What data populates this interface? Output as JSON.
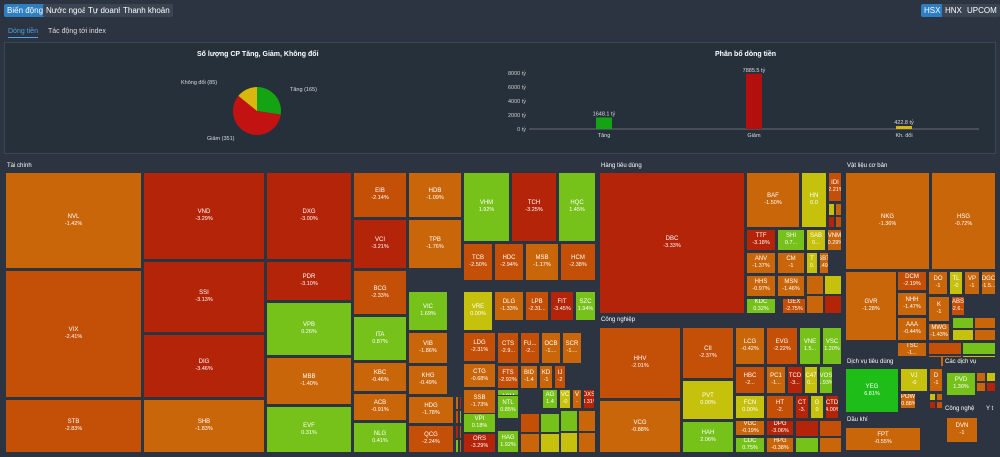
{
  "topbar": {
    "tabs": [
      {
        "label": "Biến động",
        "active": true
      },
      {
        "label": "Nước ngoài"
      },
      {
        "label": "Tự doanh"
      },
      {
        "label": "Thanh khoản"
      }
    ],
    "exchanges": [
      {
        "label": "HSX",
        "active": true
      },
      {
        "label": "HNX"
      },
      {
        "label": "UPCOM"
      }
    ]
  },
  "subtabs": [
    {
      "label": "Dòng tiền",
      "active": true
    },
    {
      "label": "Tác động tới index"
    }
  ],
  "pie": {
    "title": "Số lượng CP Tăng, Giảm, Không đổi",
    "labels": {
      "up": "Tăng (165)",
      "down": "Giảm (351)",
      "flat": "Không đổi (85)"
    },
    "chart_data": {
      "type": "pie",
      "slices": [
        {
          "name": "Tăng",
          "value": 165,
          "color": "#13a313"
        },
        {
          "name": "Giảm",
          "value": 351,
          "color": "#c21212"
        },
        {
          "name": "Không đổi",
          "value": 85,
          "color": "#d9b70f"
        }
      ]
    }
  },
  "bar": {
    "title": "Phân bổ dòng tiền",
    "yticks": [
      "8000 tỷ",
      "6000 tỷ",
      "4000 tỷ",
      "2000 tỷ",
      "0 tỷ"
    ],
    "chart_data": {
      "type": "bar",
      "categories": [
        "Tăng",
        "Giảm",
        "Kh. đổi"
      ],
      "values": [
        1648.1,
        7885.5,
        422.8
      ],
      "value_labels": [
        "1648.1 tỷ",
        "7885.5 tỷ",
        "422.8 tỷ"
      ],
      "colors": [
        "#13a313",
        "#b30f0f",
        "#d9b70f"
      ],
      "ylim": [
        0,
        8000
      ]
    }
  },
  "sectors": {
    "taichinh": "Tài chính",
    "hangtieudung": "Hàng tiêu dùng",
    "vatlieu": "Vật liệu cơ bản",
    "congnghiep": "Công nghiệp",
    "dichvutieudung": "Dịch vụ tiêu dùng",
    "cacdichvu": "Các dịch vụ",
    "dauthi": "Dầu khí",
    "congnghe": "Công nghệ",
    "y": "Y t"
  },
  "tiles": [
    {
      "t": "NVL",
      "p": "-1.42%"
    },
    {
      "t": "VIX",
      "p": "-2.41%"
    },
    {
      "t": "STB",
      "p": "-2.83%"
    },
    {
      "t": "VND",
      "p": "-3.29%"
    },
    {
      "t": "SSI",
      "p": "-3.13%"
    },
    {
      "t": "DIG",
      "p": "-3.46%"
    },
    {
      "t": "SHB",
      "p": "-1.83%"
    },
    {
      "t": "DXG",
      "p": "-3.00%"
    },
    {
      "t": "PDR",
      "p": "-3.10%"
    },
    {
      "t": "VPB",
      "p": "0.26%"
    },
    {
      "t": "MBB",
      "p": "-1.40%"
    },
    {
      "t": "EVF",
      "p": "0.31%"
    },
    {
      "t": "EIB",
      "p": "-2.14%"
    },
    {
      "t": "HDB",
      "p": "-1.09%"
    },
    {
      "t": "VHM",
      "p": "1.92%"
    },
    {
      "t": "TCH",
      "p": "-3.25%"
    },
    {
      "t": "HQC",
      "p": "1.45%"
    },
    {
      "t": "VCI",
      "p": "-3.21%"
    },
    {
      "t": "TPB",
      "p": "-1.76%"
    },
    {
      "t": "TCB",
      "p": "-2.50%"
    },
    {
      "t": "HDC",
      "p": "-2.94%"
    },
    {
      "t": "MSB",
      "p": "-1.17%"
    },
    {
      "t": "HCM",
      "p": "-2.38%"
    },
    {
      "t": "BCG",
      "p": "-2.33%"
    },
    {
      "t": "VIC",
      "p": "1.69%"
    },
    {
      "t": "VRE",
      "p": "0.00%"
    },
    {
      "t": "DLG",
      "p": "-1.33%"
    },
    {
      "t": "LPB",
      "p": "-2.31..."
    },
    {
      "t": "FIT",
      "p": "-3.45%"
    },
    {
      "t": "SZC",
      "p": "1.94%"
    },
    {
      "t": "ITA",
      "p": "0.87%"
    },
    {
      "t": "VIB",
      "p": "-1.86%"
    },
    {
      "t": "LDG",
      "p": "-2.31%"
    },
    {
      "t": "CTS",
      "p": "-2.9..."
    },
    {
      "t": "FU...",
      "p": "-2..."
    },
    {
      "t": "OCB",
      "p": "-1...."
    },
    {
      "t": "SCR",
      "p": "-1...."
    },
    {
      "t": "KBC",
      "p": "-0.46%"
    },
    {
      "t": "KHG",
      "p": "-0.49%"
    },
    {
      "t": "CTG",
      "p": "-0.68%"
    },
    {
      "t": "FTS",
      "p": "-2.92%"
    },
    {
      "t": "BID",
      "p": "-1.4"
    },
    {
      "t": "KD",
      "p": "-1"
    },
    {
      "t": "IJ",
      "p": "-2"
    },
    {
      "t": "ACB",
      "p": "-0.91%"
    },
    {
      "t": "SSB",
      "p": "-1.73%"
    },
    {
      "t": "ASM",
      "p": "1.31%"
    },
    {
      "t": "AG",
      "p": "1.4"
    },
    {
      "t": "VC",
      "p": "-0"
    },
    {
      "t": "V",
      "p": "-"
    },
    {
      "t": "DXS",
      "p": "-3.31%"
    },
    {
      "t": "HDG",
      "p": "-1.78%"
    },
    {
      "t": "VPI",
      "p": "0.18%"
    },
    {
      "t": "NTL",
      "p": "0.85%"
    },
    {
      "t": "NLG",
      "p": "0.41%"
    },
    {
      "t": "QCG",
      "p": "-2.24%"
    },
    {
      "t": "ORS",
      "p": "-3.29%"
    },
    {
      "t": "HAG",
      "p": "1.92%"
    },
    {
      "t": "DBC",
      "p": "-3.33%"
    },
    {
      "t": "BAF",
      "p": "-1.50%"
    },
    {
      "t": "HN",
      "p": "0.0"
    },
    {
      "t": "IDI",
      "p": "-2.21%"
    },
    {
      "t": "TTF",
      "p": "-3.18%"
    },
    {
      "t": "SHI",
      "p": "0.7..."
    },
    {
      "t": "SAB",
      "p": "0..."
    },
    {
      "t": "VNM",
      "p": "-0.29%"
    },
    {
      "t": "ANV",
      "p": "-1.37%"
    },
    {
      "t": "CM",
      "p": "-1"
    },
    {
      "t": "T",
      "p": "0."
    },
    {
      "t": "SBT",
      "p": "-1.49%"
    },
    {
      "t": "HHS",
      "p": "-0.97%"
    },
    {
      "t": "MSN",
      "p": "-1.46%"
    },
    {
      "t": "KDC",
      "p": "0.32%"
    },
    {
      "t": "GEX",
      "p": "-2.75%"
    },
    {
      "t": "HHV",
      "p": "-2.01%"
    },
    {
      "t": "VCG",
      "p": "-0.88%"
    },
    {
      "t": "CII",
      "p": "-2.37%"
    },
    {
      "t": "PVT",
      "p": "0.00%"
    },
    {
      "t": "HAH",
      "p": "2.06%"
    },
    {
      "t": "LCG",
      "p": "-0.42%"
    },
    {
      "t": "EVG",
      "p": "-2.22%"
    },
    {
      "t": "VNE",
      "p": "1.5..."
    },
    {
      "t": "VSC",
      "p": "1.20%"
    },
    {
      "t": "HBC",
      "p": "-2..."
    },
    {
      "t": "PC1",
      "p": "-1..."
    },
    {
      "t": "TCD",
      "p": "-3..."
    },
    {
      "t": "C47",
      "p": "0..."
    },
    {
      "t": "VOS",
      "p": "1.93%"
    },
    {
      "t": "FCN",
      "p": "0.00%"
    },
    {
      "t": "HT",
      "p": "-2."
    },
    {
      "t": "CT",
      "p": "-3."
    },
    {
      "t": "G",
      "p": "0"
    },
    {
      "t": "CTD",
      "p": "-4.00%"
    },
    {
      "t": "VGC",
      "p": "-0.19%"
    },
    {
      "t": "DPG",
      "p": "-3.06%"
    },
    {
      "t": "CDC",
      "p": "0.75%"
    },
    {
      "t": "HPG",
      "p": "-0.38%"
    },
    {
      "t": "NKG",
      "p": "-1.36%"
    },
    {
      "t": "HSG",
      "p": "-0.72%"
    },
    {
      "t": "GVR",
      "p": "-1.28%"
    },
    {
      "t": "DCM",
      "p": "-2.19%"
    },
    {
      "t": "NHH",
      "p": "-1.47%"
    },
    {
      "t": "AAA",
      "p": "-0.44%"
    },
    {
      "t": "TSC",
      "p": "-1..."
    },
    {
      "t": "DO",
      "p": "-1"
    },
    {
      "t": "TL",
      "p": "-0"
    },
    {
      "t": "VP",
      "p": "-1"
    },
    {
      "t": "DGC",
      "p": "-1.5..."
    },
    {
      "t": "K",
      "p": "-1"
    },
    {
      "t": "ABS",
      "p": "-2.6..."
    },
    {
      "t": "MWG",
      "p": "-1.43%"
    },
    {
      "t": "YEG",
      "p": "6.81%"
    },
    {
      "t": "VJ",
      "p": "-0"
    },
    {
      "t": "D",
      "p": "-1"
    },
    {
      "t": "POW",
      "p": "-0.88%"
    },
    {
      "t": "PVD",
      "p": "1.30%"
    },
    {
      "t": "FPT",
      "p": "-0.55%"
    },
    {
      "t": "DVN",
      "p": "-1"
    }
  ],
  "colors": {
    "accent": "#2d7fc1",
    "dark_red": "#b32408",
    "red_orange": "#c44f06",
    "orange": "#c9660a",
    "green": "#76c21a",
    "bright_green": "#1ebd17",
    "yellow": "#c6c10c",
    "bg": "#2b3440"
  }
}
